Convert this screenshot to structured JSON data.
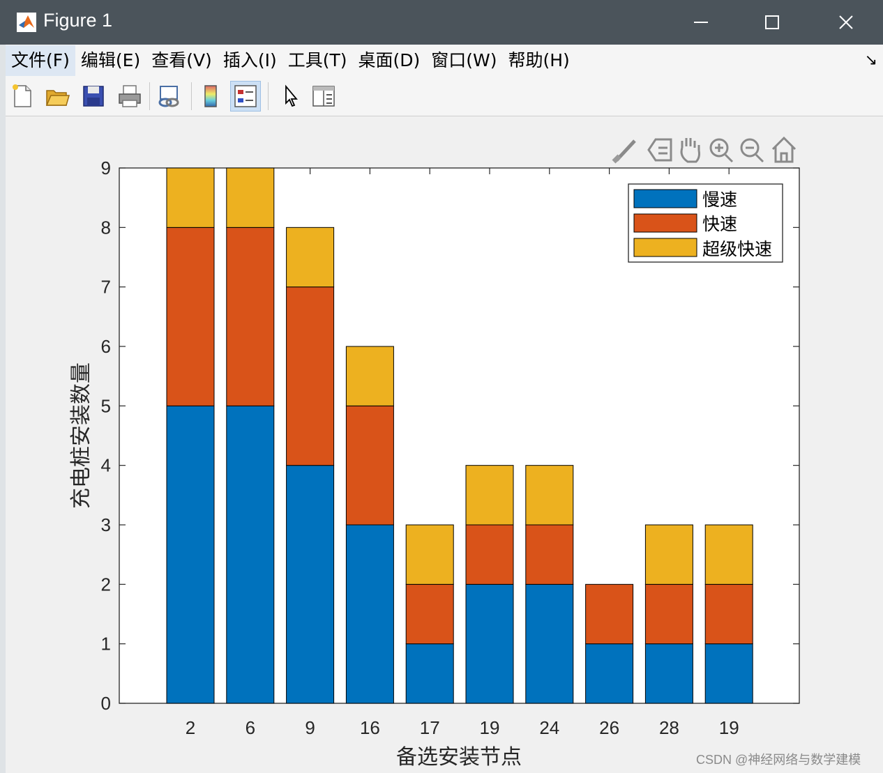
{
  "window": {
    "title": "Figure 1",
    "buttons": {
      "minimize": "minimize-icon",
      "maximize": "maximize-icon",
      "close": "close-icon"
    }
  },
  "menu": {
    "items": [
      "文件(F)",
      "编辑(E)",
      "查看(V)",
      "插入(I)",
      "工具(T)",
      "桌面(D)",
      "窗口(W)",
      "帮助(H)"
    ],
    "active": "文件(F)",
    "dock_icon": "↘"
  },
  "toolbar": {
    "icons": [
      "new-figure-icon",
      "open-file-icon",
      "save-icon",
      "print-icon",
      "link-plot-icon",
      "colorbar-icon",
      "legend-icon",
      "pointer-icon",
      "property-inspector-icon"
    ],
    "active": "legend-icon"
  },
  "axes_toolbar": {
    "icons": [
      "brush-icon",
      "data-tips-icon",
      "pan-icon",
      "zoom-in-icon",
      "zoom-out-icon",
      "home-icon"
    ]
  },
  "chart_data": {
    "type": "bar",
    "stacked": true,
    "categories": [
      "2",
      "6",
      "9",
      "16",
      "17",
      "19",
      "24",
      "26",
      "28",
      "19"
    ],
    "series": [
      {
        "name": "慢速",
        "color": "#0072bd",
        "values": [
          5,
          5,
          4,
          3,
          1,
          2,
          2,
          1,
          1,
          1
        ]
      },
      {
        "name": "快速",
        "color": "#d95319",
        "values": [
          3,
          3,
          3,
          2,
          1,
          1,
          1,
          1,
          1,
          1
        ]
      },
      {
        "name": "超级快速",
        "color": "#edb120",
        "values": [
          1,
          1,
          1,
          1,
          1,
          1,
          1,
          0,
          1,
          1
        ]
      }
    ],
    "xlabel": "备选安装节点",
    "ylabel": "充电桩安装数量",
    "ylim": [
      0,
      9
    ],
    "yticks": [
      "0",
      "1",
      "2",
      "3",
      "4",
      "5",
      "6",
      "7",
      "8",
      "9"
    ],
    "grid": false,
    "legend_position": "top-right"
  },
  "watermark": "CSDN @神经网络与数学建模"
}
